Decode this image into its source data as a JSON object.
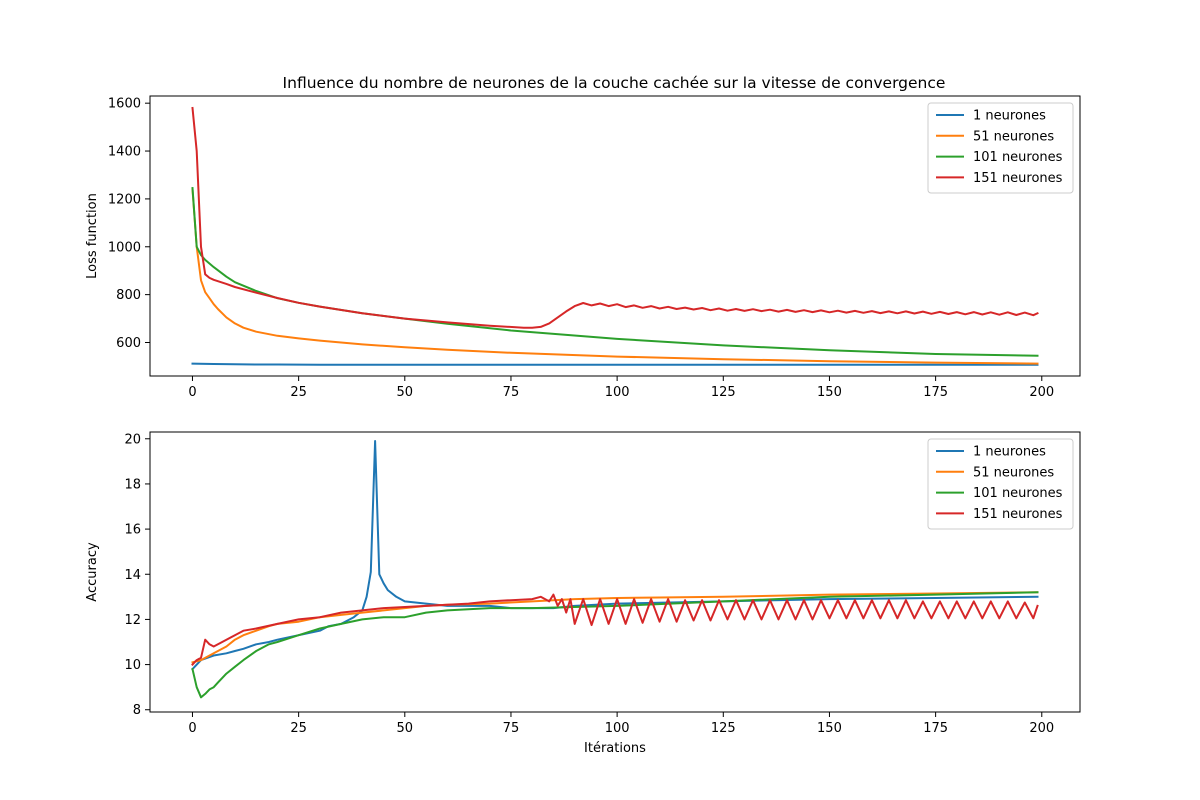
{
  "figure": {
    "title": "Influence du nombre de neurones de la couche cachée sur la vitesse de convergence"
  },
  "chart_data": [
    {
      "type": "line",
      "title": "Influence du nombre de neurones de la couche cachée sur la vitesse de convergence",
      "xlabel": "",
      "ylabel": "Loss function",
      "xlim": [
        -10,
        209
      ],
      "ylim": [
        460,
        1630
      ],
      "xticks": [
        0,
        25,
        50,
        75,
        100,
        125,
        150,
        175,
        200
      ],
      "yticks": [
        600,
        800,
        1000,
        1200,
        1400,
        1600
      ],
      "legend": "top-right",
      "grid": false,
      "series": [
        {
          "name": "1 neurones",
          "color": "#1f77b4",
          "x": [
            0,
            5,
            10,
            15,
            20,
            30,
            40,
            50,
            75,
            100,
            125,
            150,
            175,
            199
          ],
          "y": [
            512,
            510,
            509,
            508,
            508,
            507,
            507,
            507,
            507,
            507,
            507,
            507,
            507,
            507
          ]
        },
        {
          "name": "51 neurones",
          "color": "#ff7f0e",
          "x": [
            0,
            1,
            2,
            3,
            4,
            5,
            6,
            8,
            10,
            12,
            15,
            20,
            25,
            30,
            40,
            50,
            60,
            75,
            100,
            125,
            150,
            175,
            199
          ],
          "y": [
            1240,
            1000,
            860,
            810,
            785,
            760,
            740,
            705,
            680,
            662,
            645,
            628,
            617,
            608,
            592,
            580,
            570,
            557,
            541,
            530,
            522,
            516,
            512
          ]
        },
        {
          "name": "101 neurones",
          "color": "#2ca02c",
          "x": [
            0,
            1,
            2,
            3,
            5,
            8,
            10,
            15,
            20,
            25,
            30,
            40,
            50,
            60,
            75,
            100,
            125,
            150,
            175,
            199
          ],
          "y": [
            1245,
            1000,
            965,
            945,
            915,
            875,
            852,
            815,
            785,
            766,
            750,
            722,
            700,
            678,
            650,
            615,
            588,
            568,
            552,
            545
          ]
        },
        {
          "name": "151 neurones",
          "color": "#d62728",
          "x": [
            0,
            1,
            2,
            3,
            4,
            5,
            8,
            10,
            15,
            20,
            25,
            30,
            40,
            50,
            60,
            70,
            78,
            80,
            82,
            84,
            86,
            88,
            90,
            92,
            94,
            96,
            98,
            100,
            102,
            104,
            106,
            108,
            110,
            112,
            114,
            116,
            118,
            120,
            122,
            124,
            126,
            128,
            130,
            132,
            134,
            136,
            138,
            140,
            142,
            144,
            146,
            148,
            150,
            152,
            154,
            156,
            158,
            160,
            162,
            164,
            166,
            168,
            170,
            172,
            174,
            176,
            178,
            180,
            182,
            184,
            186,
            188,
            190,
            192,
            194,
            196,
            198,
            199
          ],
          "y": [
            1580,
            1400,
            1000,
            885,
            870,
            862,
            845,
            832,
            808,
            786,
            766,
            750,
            722,
            700,
            684,
            670,
            662,
            662,
            665,
            680,
            705,
            730,
            752,
            765,
            755,
            763,
            752,
            760,
            748,
            755,
            745,
            752,
            742,
            749,
            740,
            746,
            738,
            744,
            735,
            742,
            733,
            740,
            732,
            739,
            731,
            737,
            729,
            736,
            728,
            735,
            727,
            734,
            726,
            733,
            725,
            732,
            724,
            731,
            723,
            730,
            722,
            730,
            721,
            729,
            720,
            728,
            719,
            727,
            718,
            727,
            717,
            726,
            716,
            726,
            715,
            725,
            714,
            722
          ]
        }
      ]
    },
    {
      "type": "line",
      "title": "",
      "xlabel": "Itérations",
      "ylabel": "Accuracy",
      "xlim": [
        -10,
        209
      ],
      "ylim": [
        7.9,
        20.3
      ],
      "xticks": [
        0,
        25,
        50,
        75,
        100,
        125,
        150,
        175,
        200
      ],
      "yticks": [
        8,
        10,
        12,
        14,
        16,
        18,
        20
      ],
      "legend": "top-right",
      "grid": false,
      "series": [
        {
          "name": "1 neurones",
          "color": "#1f77b4",
          "x": [
            0,
            2,
            5,
            8,
            10,
            12,
            15,
            18,
            20,
            25,
            30,
            32,
            35,
            38,
            40,
            41,
            42,
            43,
            44,
            45,
            46,
            48,
            50,
            55,
            60,
            65,
            70,
            75,
            80,
            85,
            90,
            100,
            125,
            150,
            175,
            199
          ],
          "y": [
            9.8,
            10.2,
            10.4,
            10.5,
            10.6,
            10.7,
            10.9,
            11.0,
            11.1,
            11.3,
            11.5,
            11.7,
            11.8,
            12.1,
            12.4,
            13.0,
            14.1,
            19.9,
            14.0,
            13.6,
            13.3,
            13.0,
            12.8,
            12.7,
            12.6,
            12.6,
            12.6,
            12.5,
            12.5,
            12.5,
            12.6,
            12.7,
            12.8,
            12.9,
            12.95,
            13.0
          ]
        },
        {
          "name": "51 neurones",
          "color": "#ff7f0e",
          "x": [
            0,
            2,
            5,
            8,
            10,
            12,
            15,
            18,
            20,
            25,
            30,
            35,
            40,
            45,
            50,
            55,
            60,
            70,
            80,
            90,
            100,
            110,
            125,
            150,
            175,
            199
          ],
          "y": [
            10.1,
            10.2,
            10.5,
            10.8,
            11.1,
            11.3,
            11.5,
            11.7,
            11.8,
            11.9,
            12.1,
            12.2,
            12.3,
            12.4,
            12.5,
            12.6,
            12.65,
            12.7,
            12.8,
            12.9,
            12.95,
            12.97,
            13.0,
            13.1,
            13.15,
            13.2
          ]
        },
        {
          "name": "101 neurones",
          "color": "#2ca02c",
          "x": [
            0,
            1,
            2,
            3,
            4,
            5,
            6,
            8,
            10,
            12,
            15,
            18,
            20,
            25,
            30,
            35,
            40,
            45,
            50,
            55,
            60,
            70,
            80,
            90,
            100,
            125,
            150,
            175,
            199
          ],
          "y": [
            9.8,
            9.0,
            8.55,
            8.7,
            8.9,
            9.0,
            9.2,
            9.6,
            9.9,
            10.2,
            10.6,
            10.9,
            11.0,
            11.3,
            11.6,
            11.8,
            12.0,
            12.1,
            12.1,
            12.3,
            12.4,
            12.5,
            12.5,
            12.55,
            12.6,
            12.8,
            13.0,
            13.1,
            13.2
          ]
        },
        {
          "name": "151 neurones",
          "color": "#d62728",
          "x": [
            0,
            1,
            2,
            3,
            4,
            5,
            7,
            10,
            12,
            15,
            20,
            25,
            30,
            35,
            40,
            45,
            50,
            55,
            60,
            65,
            70,
            75,
            80,
            82,
            84,
            85,
            86,
            87,
            88,
            89,
            90,
            92,
            94,
            96,
            98,
            100,
            102,
            104,
            106,
            108,
            110,
            112,
            114,
            116,
            118,
            120,
            122,
            124,
            126,
            128,
            130,
            132,
            134,
            136,
            138,
            140,
            142,
            144,
            146,
            148,
            150,
            152,
            154,
            156,
            158,
            160,
            162,
            164,
            166,
            168,
            170,
            172,
            174,
            176,
            178,
            180,
            182,
            184,
            186,
            188,
            190,
            192,
            194,
            196,
            198,
            199
          ],
          "y": [
            10.0,
            10.2,
            10.3,
            11.1,
            10.9,
            10.8,
            11.0,
            11.3,
            11.5,
            11.6,
            11.8,
            12.0,
            12.1,
            12.3,
            12.4,
            12.5,
            12.55,
            12.6,
            12.65,
            12.7,
            12.8,
            12.85,
            12.9,
            13.0,
            12.8,
            13.1,
            12.6,
            12.9,
            12.3,
            12.9,
            11.8,
            12.9,
            11.75,
            12.9,
            11.8,
            12.9,
            11.8,
            12.9,
            11.85,
            12.9,
            11.9,
            12.9,
            11.9,
            12.85,
            11.95,
            12.85,
            11.95,
            12.85,
            12.0,
            12.85,
            12.0,
            12.85,
            12.0,
            12.85,
            12.0,
            12.85,
            12.0,
            12.85,
            12.0,
            12.85,
            12.05,
            12.85,
            12.05,
            12.85,
            12.05,
            12.85,
            12.05,
            12.85,
            12.05,
            12.85,
            12.05,
            12.8,
            12.05,
            12.8,
            12.05,
            12.8,
            12.05,
            12.8,
            12.05,
            12.8,
            12.05,
            12.8,
            12.05,
            12.75,
            12.05,
            12.6
          ]
        }
      ]
    }
  ]
}
